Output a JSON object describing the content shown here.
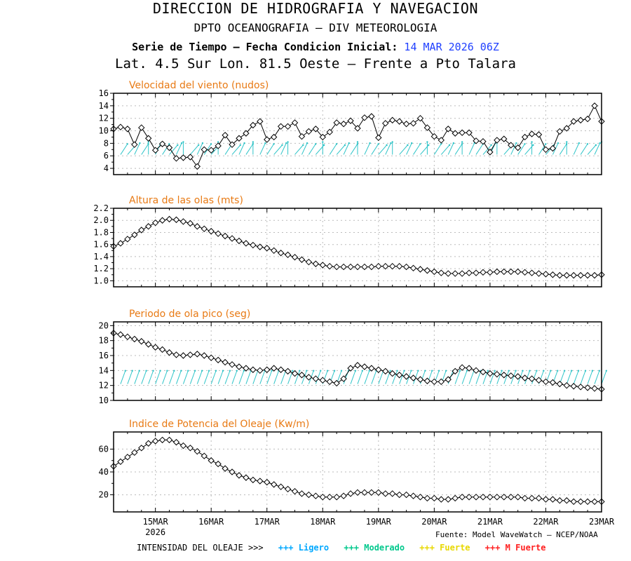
{
  "header": {
    "line1": "DIRECCION DE HIDROGRAFIA Y NAVEGACION",
    "line2": "DPTO OCEANOGRAFIA – DIV METEOROLOGIA",
    "line3_prefix": "Serie de Tiempo – Fecha Condicion Inicial:",
    "line3_date": "14 MAR 2026 06Z",
    "line4": "Lat. 4.5 Sur  Lon. 81.5 Oeste – Frente a Pto Talara"
  },
  "x_axis": {
    "labels": [
      "15MAR",
      "16MAR",
      "17MAR",
      "18MAR",
      "19MAR",
      "20MAR",
      "21MAR",
      "22MAR",
      "23MAR"
    ],
    "year_label": "2026",
    "start_hours_before_15MAR": 18,
    "end_hours_after_15MAR": 192
  },
  "footer": {
    "source": "Fuente: Model WaveWatch – NCEP/NOAA",
    "legend_label": "INTENSIDAD DEL OLEAJE >>>",
    "legend": [
      {
        "text": "+++ Ligero",
        "color": "#00a8ff"
      },
      {
        "text": "+++ Moderado",
        "color": "#00c88c"
      },
      {
        "text": "+++ Fuerte",
        "color": "#e8d800"
      },
      {
        "text": "+++ M Fuerte",
        "color": "#ff2020"
      }
    ]
  },
  "chart_data": [
    {
      "type": "line",
      "title": "Velocidad del viento (nudos)",
      "ylim": [
        3,
        16
      ],
      "yticks": [
        4,
        6,
        8,
        10,
        12,
        14,
        16
      ],
      "grid": true,
      "arrow_color": "#2ec4c8",
      "values": [
        10.3,
        10.6,
        10.3,
        7.8,
        10.5,
        8.8,
        6.9,
        7.9,
        7.3,
        5.6,
        5.7,
        5.8,
        4.3,
        7.0,
        6.9,
        7.6,
        9.3,
        7.8,
        8.8,
        9.6,
        10.9,
        11.5,
        8.6,
        9.0,
        10.7,
        10.7,
        11.3,
        9.1,
        9.9,
        10.3,
        9.0,
        9.8,
        11.3,
        11.1,
        11.6,
        10.4,
        12.1,
        12.3,
        8.9,
        11.2,
        11.7,
        11.5,
        11.1,
        11.2,
        12.0,
        10.5,
        9.1,
        8.5,
        10.3,
        9.6,
        9.7,
        9.7,
        8.4,
        8.3,
        6.6,
        8.5,
        8.7,
        7.7,
        7.3,
        9.0,
        9.5,
        9.4,
        7.0,
        7.2,
        9.9,
        10.4,
        11.5,
        11.7,
        11.9,
        14.0,
        11.5
      ]
    },
    {
      "type": "line",
      "title": "Altura de las olas (mts)",
      "ylim": [
        0.9,
        2.2
      ],
      "yticks": [
        1.0,
        1.2,
        1.4,
        1.6,
        1.8,
        2.0,
        2.2
      ],
      "grid": true,
      "values": [
        1.57,
        1.62,
        1.69,
        1.76,
        1.84,
        1.9,
        1.96,
        2.0,
        2.02,
        2.01,
        1.98,
        1.95,
        1.9,
        1.86,
        1.82,
        1.78,
        1.74,
        1.7,
        1.66,
        1.62,
        1.59,
        1.56,
        1.54,
        1.5,
        1.46,
        1.43,
        1.39,
        1.35,
        1.31,
        1.28,
        1.26,
        1.24,
        1.23,
        1.23,
        1.23,
        1.23,
        1.23,
        1.23,
        1.24,
        1.24,
        1.24,
        1.24,
        1.23,
        1.21,
        1.19,
        1.17,
        1.15,
        1.13,
        1.12,
        1.12,
        1.12,
        1.13,
        1.13,
        1.14,
        1.14,
        1.15,
        1.15,
        1.15,
        1.15,
        1.14,
        1.13,
        1.12,
        1.11,
        1.1,
        1.09,
        1.09,
        1.09,
        1.09,
        1.09,
        1.09,
        1.1
      ]
    },
    {
      "type": "line",
      "title": "Periodo de ola pico (seg)",
      "ylim": [
        10,
        20.5
      ],
      "yticks": [
        10,
        12,
        14,
        16,
        18,
        20
      ],
      "grid": true,
      "arrow_color": "#2ec4c8",
      "values": [
        19.0,
        18.8,
        18.5,
        18.2,
        17.9,
        17.5,
        17.1,
        16.8,
        16.4,
        16.1,
        16.0,
        16.1,
        16.2,
        16.0,
        15.7,
        15.4,
        15.1,
        14.8,
        14.5,
        14.3,
        14.1,
        14.0,
        14.1,
        14.3,
        14.1,
        13.9,
        13.6,
        13.4,
        13.1,
        12.9,
        12.7,
        12.5,
        12.3,
        12.9,
        14.3,
        14.7,
        14.5,
        14.3,
        14.1,
        13.9,
        13.6,
        13.4,
        13.2,
        13.0,
        12.8,
        12.6,
        12.5,
        12.5,
        12.8,
        13.9,
        14.4,
        14.3,
        14.0,
        13.8,
        13.6,
        13.5,
        13.4,
        13.3,
        13.2,
        13.0,
        12.9,
        12.7,
        12.5,
        12.4,
        12.2,
        12.0,
        11.9,
        11.8,
        11.7,
        11.6,
        11.5
      ]
    },
    {
      "type": "line",
      "title": "Indice de Potencia del Oleaje (Kw/m)",
      "ylim": [
        5,
        75
      ],
      "yticks": [
        20,
        40,
        60
      ],
      "grid": true,
      "values": [
        45,
        49,
        53,
        57,
        61,
        65,
        67,
        68,
        68,
        66,
        63,
        61,
        58,
        54,
        50,
        47,
        43,
        40,
        37,
        35,
        33,
        32,
        31,
        29,
        27,
        25,
        23,
        21,
        20,
        19,
        18,
        18,
        18,
        19,
        21,
        22,
        22,
        22,
        22,
        21,
        21,
        20,
        20,
        19,
        18,
        17,
        17,
        16,
        16,
        17,
        18,
        18,
        18,
        18,
        18,
        18,
        18,
        18,
        18,
        17,
        17,
        17,
        16,
        16,
        15,
        15,
        14,
        14,
        14,
        14,
        14
      ]
    }
  ]
}
